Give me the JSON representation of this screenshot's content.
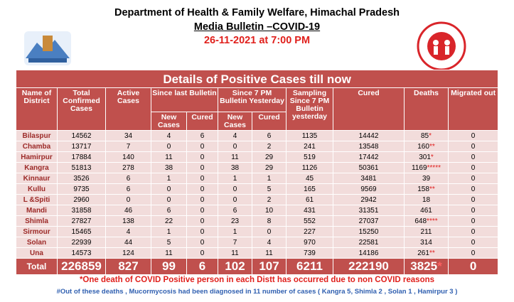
{
  "header": {
    "title": "Department of Health & Family Welfare, Himachal Pradesh",
    "subtitle": "Media Bulletin –COVID-19",
    "date": "26-11-2021 at 7:00 PM"
  },
  "table": {
    "title": "Details of Positive Cases till now",
    "columns": {
      "name": "Name of District",
      "total": "Total Confirmed Cases",
      "active": "Active Cases",
      "since_last": "Since last Bulletin",
      "since_7pm": "Since 7 PM Bulletin Yesterday",
      "sampling": "Sampling Since 7 PM Bulletin yesterday",
      "cured": "Cured",
      "deaths": "Deaths",
      "migrated": "Migrated out"
    },
    "sub_columns": [
      "New Cases",
      "Cured",
      "New Cases",
      "Cured"
    ],
    "rows": [
      [
        "Bilaspur",
        "14562",
        "34",
        "4",
        "6",
        "4",
        "6",
        "1135",
        "14442",
        {
          "value": "85",
          "mark": "*"
        },
        "0"
      ],
      [
        "Chamba",
        "13717",
        "7",
        "0",
        "0",
        "0",
        "2",
        "241",
        "13548",
        {
          "value": "160",
          "mark": "**"
        },
        "0"
      ],
      [
        "Hamirpur",
        "17884",
        "140",
        "11",
        "0",
        "11",
        "29",
        "519",
        "17442",
        {
          "value": "301",
          "mark": "*"
        },
        "0"
      ],
      [
        "Kangra",
        "51813",
        "278",
        "38",
        "0",
        "38",
        "29",
        "1126",
        "50361",
        {
          "value": "1169",
          "mark": "*****"
        },
        "0"
      ],
      [
        "Kinnaur",
        "3526",
        "6",
        "1",
        "0",
        "1",
        "1",
        "45",
        "3481",
        {
          "value": "39"
        },
        "0"
      ],
      [
        "Kullu",
        "9735",
        "6",
        "0",
        "0",
        "0",
        "5",
        "165",
        "9569",
        {
          "value": "158",
          "mark": "**"
        },
        "0"
      ],
      [
        "L &Spiti",
        "2960",
        "0",
        "0",
        "0",
        "0",
        "2",
        "61",
        "2942",
        {
          "value": "18"
        },
        "0"
      ],
      [
        "Mandi",
        "31858",
        "46",
        "6",
        "0",
        "6",
        "10",
        "431",
        "31351",
        {
          "value": "461"
        },
        "0"
      ],
      [
        "Shimla",
        "27827",
        "138",
        "22",
        "0",
        "23",
        "8",
        "552",
        "27037",
        {
          "value": "648",
          "mark": "****"
        },
        "0"
      ],
      [
        "Sirmour",
        "15465",
        "4",
        "1",
        "0",
        "1",
        "0",
        "227",
        "15250",
        {
          "value": "211"
        },
        "0"
      ],
      [
        "Solan",
        "22939",
        "44",
        "5",
        "0",
        "7",
        "4",
        "970",
        "22581",
        {
          "value": "314"
        },
        "0"
      ],
      [
        "Una",
        "14573",
        "124",
        "11",
        "0",
        "11",
        "11",
        "739",
        "14186",
        {
          "value": "261",
          "mark": "**"
        },
        "0"
      ]
    ],
    "total": [
      "Total",
      "226859",
      "827",
      "99",
      "6",
      "102",
      "107",
      "6211",
      "222190",
      {
        "value": "3825",
        "mark": "*"
      },
      "0"
    ]
  },
  "notes": [
    "*One death of COVID Positive person in each Distt has occurred due to non COVID reasons",
    "#Out of these deaths , Mucormycosis had been diagnosed in 11 number of cases ( Kangra 5, Shimla 2 , Solan 1 , Hamirpur 3 )"
  ]
}
